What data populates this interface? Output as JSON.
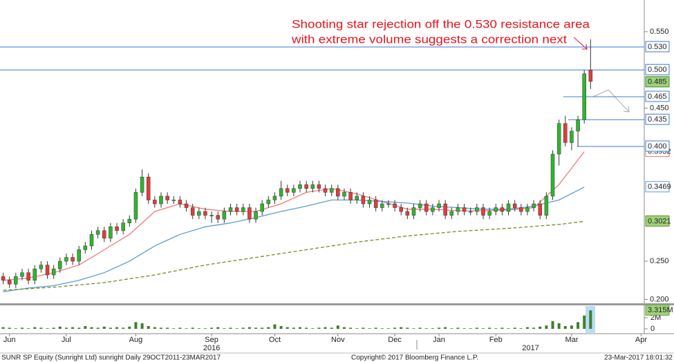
{
  "chart_data": {
    "type": "candlestick",
    "annotation": [
      "Shooting star rejection off the 0.530 resistance area",
      "with extreme volume suggests a correction next"
    ],
    "xlim": [
      -0.5,
      101.5
    ],
    "xticks": [
      {
        "value": 1,
        "label": "Jun"
      },
      {
        "value": 10,
        "label": "Jul"
      },
      {
        "value": 21,
        "label": "Aug"
      },
      {
        "value": 33,
        "label": "Sep"
      },
      {
        "value": 43,
        "label": "Oct"
      },
      {
        "value": 53,
        "label": "Nov"
      },
      {
        "value": 62,
        "label": "Dec"
      },
      {
        "value": 69,
        "label": "Jan"
      },
      {
        "value": 78,
        "label": "Feb"
      },
      {
        "value": 90,
        "label": "Mar"
      },
      {
        "value": 101,
        "label": "Apr"
      }
    ],
    "year_ticks": [
      {
        "value": 33,
        "label": "2016"
      },
      {
        "value": 83.5,
        "label": "2017"
      }
    ],
    "ylim": [
      0.195,
      0.5914
    ],
    "yticks": [
      {
        "value": 0.2,
        "label": "0.200"
      },
      {
        "value": 0.25,
        "label": "0.250"
      },
      {
        "value": 0.45,
        "label": "0.450"
      },
      {
        "value": 0.55,
        "label": "0.550"
      }
    ],
    "up_color": "#2fb52f",
    "down_color": "#e23c3c",
    "candles": [
      [
        0.23,
        0.235,
        0.22,
        0.225
      ],
      [
        0.225,
        0.23,
        0.215,
        0.22
      ],
      [
        0.22,
        0.235,
        0.215,
        0.23
      ],
      [
        0.23,
        0.24,
        0.225,
        0.235
      ],
      [
        0.235,
        0.24,
        0.22,
        0.225
      ],
      [
        0.225,
        0.245,
        0.22,
        0.24
      ],
      [
        0.24,
        0.25,
        0.235,
        0.245
      ],
      [
        0.245,
        0.25,
        0.227,
        0.232
      ],
      [
        0.232,
        0.245,
        0.227,
        0.24
      ],
      [
        0.24,
        0.255,
        0.235,
        0.25
      ],
      [
        0.25,
        0.26,
        0.245,
        0.255
      ],
      [
        0.255,
        0.26,
        0.245,
        0.25
      ],
      [
        0.25,
        0.27,
        0.245,
        0.265
      ],
      [
        0.265,
        0.275,
        0.26,
        0.27
      ],
      [
        0.27,
        0.29,
        0.265,
        0.285
      ],
      [
        0.285,
        0.295,
        0.28,
        0.29
      ],
      [
        0.29,
        0.295,
        0.275,
        0.28
      ],
      [
        0.28,
        0.3,
        0.275,
        0.295
      ],
      [
        0.295,
        0.3,
        0.285,
        0.29
      ],
      [
        0.29,
        0.305,
        0.285,
        0.3
      ],
      [
        0.3,
        0.31,
        0.295,
        0.305
      ],
      [
        0.305,
        0.345,
        0.3,
        0.34
      ],
      [
        0.34,
        0.37,
        0.335,
        0.36
      ],
      [
        0.36,
        0.365,
        0.325,
        0.33
      ],
      [
        0.33,
        0.335,
        0.32,
        0.325
      ],
      [
        0.325,
        0.34,
        0.32,
        0.335
      ],
      [
        0.335,
        0.34,
        0.325,
        0.33
      ],
      [
        0.33,
        0.335,
        0.325,
        0.33
      ],
      [
        0.33,
        0.335,
        0.32,
        0.325
      ],
      [
        0.325,
        0.33,
        0.315,
        0.32
      ],
      [
        0.32,
        0.325,
        0.305,
        0.31
      ],
      [
        0.31,
        0.32,
        0.305,
        0.315
      ],
      [
        0.315,
        0.32,
        0.305,
        0.31
      ],
      [
        0.31,
        0.315,
        0.3,
        0.31
      ],
      [
        0.31,
        0.315,
        0.3,
        0.305
      ],
      [
        0.305,
        0.32,
        0.3,
        0.315
      ],
      [
        0.315,
        0.325,
        0.31,
        0.32
      ],
      [
        0.32,
        0.325,
        0.31,
        0.315
      ],
      [
        0.315,
        0.325,
        0.31,
        0.32
      ],
      [
        0.32,
        0.325,
        0.3,
        0.305
      ],
      [
        0.305,
        0.32,
        0.3,
        0.315
      ],
      [
        0.315,
        0.33,
        0.31,
        0.325
      ],
      [
        0.325,
        0.335,
        0.32,
        0.33
      ],
      [
        0.33,
        0.34,
        0.325,
        0.335
      ],
      [
        0.335,
        0.355,
        0.33,
        0.345
      ],
      [
        0.345,
        0.35,
        0.335,
        0.34
      ],
      [
        0.34,
        0.35,
        0.335,
        0.345
      ],
      [
        0.345,
        0.355,
        0.34,
        0.35
      ],
      [
        0.35,
        0.355,
        0.34,
        0.345
      ],
      [
        0.345,
        0.355,
        0.34,
        0.35
      ],
      [
        0.35,
        0.355,
        0.34,
        0.345
      ],
      [
        0.345,
        0.35,
        0.335,
        0.34
      ],
      [
        0.34,
        0.35,
        0.335,
        0.345
      ],
      [
        0.345,
        0.35,
        0.33,
        0.335
      ],
      [
        0.335,
        0.345,
        0.33,
        0.34
      ],
      [
        0.34,
        0.345,
        0.325,
        0.33
      ],
      [
        0.33,
        0.34,
        0.325,
        0.335
      ],
      [
        0.335,
        0.34,
        0.32,
        0.325
      ],
      [
        0.325,
        0.335,
        0.32,
        0.33
      ],
      [
        0.33,
        0.335,
        0.315,
        0.32
      ],
      [
        0.32,
        0.33,
        0.315,
        0.325
      ],
      [
        0.325,
        0.33,
        0.32,
        0.325
      ],
      [
        0.325,
        0.33,
        0.315,
        0.32
      ],
      [
        0.32,
        0.325,
        0.31,
        0.315
      ],
      [
        0.315,
        0.32,
        0.305,
        0.31
      ],
      [
        0.31,
        0.325,
        0.305,
        0.32
      ],
      [
        0.32,
        0.33,
        0.315,
        0.325
      ],
      [
        0.325,
        0.33,
        0.31,
        0.315
      ],
      [
        0.315,
        0.325,
        0.31,
        0.32
      ],
      [
        0.32,
        0.33,
        0.315,
        0.325
      ],
      [
        0.325,
        0.33,
        0.305,
        0.31
      ],
      [
        0.31,
        0.32,
        0.305,
        0.315
      ],
      [
        0.315,
        0.325,
        0.31,
        0.32
      ],
      [
        0.32,
        0.325,
        0.31,
        0.315
      ],
      [
        0.315,
        0.32,
        0.31,
        0.315
      ],
      [
        0.315,
        0.325,
        0.31,
        0.32
      ],
      [
        0.32,
        0.325,
        0.305,
        0.31
      ],
      [
        0.31,
        0.32,
        0.305,
        0.315
      ],
      [
        0.315,
        0.325,
        0.31,
        0.32
      ],
      [
        0.32,
        0.325,
        0.31,
        0.315
      ],
      [
        0.315,
        0.33,
        0.31,
        0.325
      ],
      [
        0.325,
        0.33,
        0.315,
        0.32
      ],
      [
        0.32,
        0.325,
        0.31,
        0.315
      ],
      [
        0.315,
        0.325,
        0.31,
        0.32
      ],
      [
        0.32,
        0.33,
        0.315,
        0.325
      ],
      [
        0.325,
        0.33,
        0.305,
        0.31
      ],
      [
        0.31,
        0.34,
        0.305,
        0.335
      ],
      [
        0.335,
        0.395,
        0.33,
        0.39
      ],
      [
        0.39,
        0.435,
        0.375,
        0.43
      ],
      [
        0.43,
        0.44,
        0.4,
        0.405
      ],
      [
        0.405,
        0.425,
        0.395,
        0.42
      ],
      [
        0.42,
        0.44,
        0.4,
        0.435
      ],
      [
        0.435,
        0.5,
        0.43,
        0.495
      ],
      [
        0.5,
        0.54,
        0.475,
        0.485
      ]
    ],
    "series": [
      {
        "color": "#f07a7a",
        "dashed": false,
        "x": [
          0,
          4,
          8,
          12,
          16,
          20,
          24,
          28,
          32,
          36,
          40,
          44,
          48,
          52,
          56,
          60,
          64,
          68,
          72,
          76,
          80,
          84,
          88,
          92
        ],
        "values": [
          0.225,
          0.228,
          0.235,
          0.245,
          0.265,
          0.285,
          0.315,
          0.325,
          0.318,
          0.315,
          0.315,
          0.325,
          0.34,
          0.345,
          0.338,
          0.328,
          0.318,
          0.318,
          0.316,
          0.316,
          0.317,
          0.32,
          0.35,
          0.3932
        ]
      },
      {
        "color": "#5b9bd5",
        "dashed": false,
        "x": [
          0,
          4,
          8,
          12,
          16,
          20,
          24,
          28,
          32,
          36,
          40,
          44,
          48,
          52,
          56,
          60,
          64,
          68,
          72,
          76,
          80,
          84,
          88,
          92
        ],
        "values": [
          0.21,
          0.215,
          0.218,
          0.225,
          0.235,
          0.25,
          0.27,
          0.285,
          0.295,
          0.3,
          0.307,
          0.315,
          0.322,
          0.33,
          0.33,
          0.328,
          0.326,
          0.322,
          0.32,
          0.318,
          0.318,
          0.322,
          0.33,
          0.3469
        ]
      },
      {
        "color": "#6b8e23",
        "dashed": true,
        "x": [
          0,
          8,
          16,
          24,
          32,
          40,
          48,
          56,
          64,
          72,
          80,
          88,
          92
        ],
        "values": [
          0.212,
          0.216,
          0.222,
          0.232,
          0.245,
          0.255,
          0.265,
          0.275,
          0.283,
          0.289,
          0.293,
          0.298,
          0.3021
        ]
      }
    ],
    "levels": [
      {
        "value": 0.53,
        "label": "0.530"
      },
      {
        "value": 0.5,
        "label": "0.500"
      },
      {
        "value": 0.465,
        "label": "0.465"
      },
      {
        "value": 0.435,
        "label": "0.435"
      },
      {
        "value": 0.4,
        "label": "0.400"
      }
    ],
    "volume": {
      "color": "#3d7f2c",
      "ylim": [
        0,
        4.1
      ],
      "yticks": [
        0,
        {
          "value": 2,
          "label": "2M"
        }
      ],
      "last_label": "3.315M",
      "values": [
        0.3,
        0.2,
        0.1,
        0.2,
        0.1,
        0.3,
        0.2,
        0.1,
        0.2,
        0.4,
        0.2,
        0.3,
        0.2,
        0.5,
        0.3,
        0.2,
        0.4,
        0.2,
        0.3,
        0.2,
        0.4,
        1.2,
        1.0,
        0.5,
        0.3,
        0.2,
        0.2,
        0.1,
        0.2,
        0.1,
        0.2,
        0.1,
        0.1,
        0.2,
        0.3,
        0.1,
        0.2,
        0.1,
        0.2,
        0.3,
        0.2,
        0.2,
        0.3,
        0.8,
        0.5,
        0.3,
        0.2,
        0.3,
        0.2,
        0.1,
        0.2,
        0.3,
        0.2,
        0.6,
        0.3,
        0.2,
        0.1,
        0.2,
        0.1,
        0.2,
        0.1,
        0.1,
        0.2,
        0.3,
        0.2,
        0.1,
        0.2,
        0.1,
        0.1,
        0.2,
        0.3,
        0.1,
        0.2,
        0.1,
        0.1,
        0.2,
        0.1,
        0.2,
        0.1,
        0.2,
        0.1,
        0.2,
        0.1,
        0.3,
        0.2,
        0.4,
        0.6,
        1.4,
        1.0,
        0.5,
        0.6,
        1.2,
        2.4,
        3.315
      ]
    },
    "footer": {
      "left": "SUNR SP Equity (Sunright Ltd) sunright  Daily 29OCT2011-23MAR2017",
      "center": "Copyright© 2017 Bloomberg Finance L.P.",
      "right": "23-Mar-2017 18:01:32"
    }
  }
}
